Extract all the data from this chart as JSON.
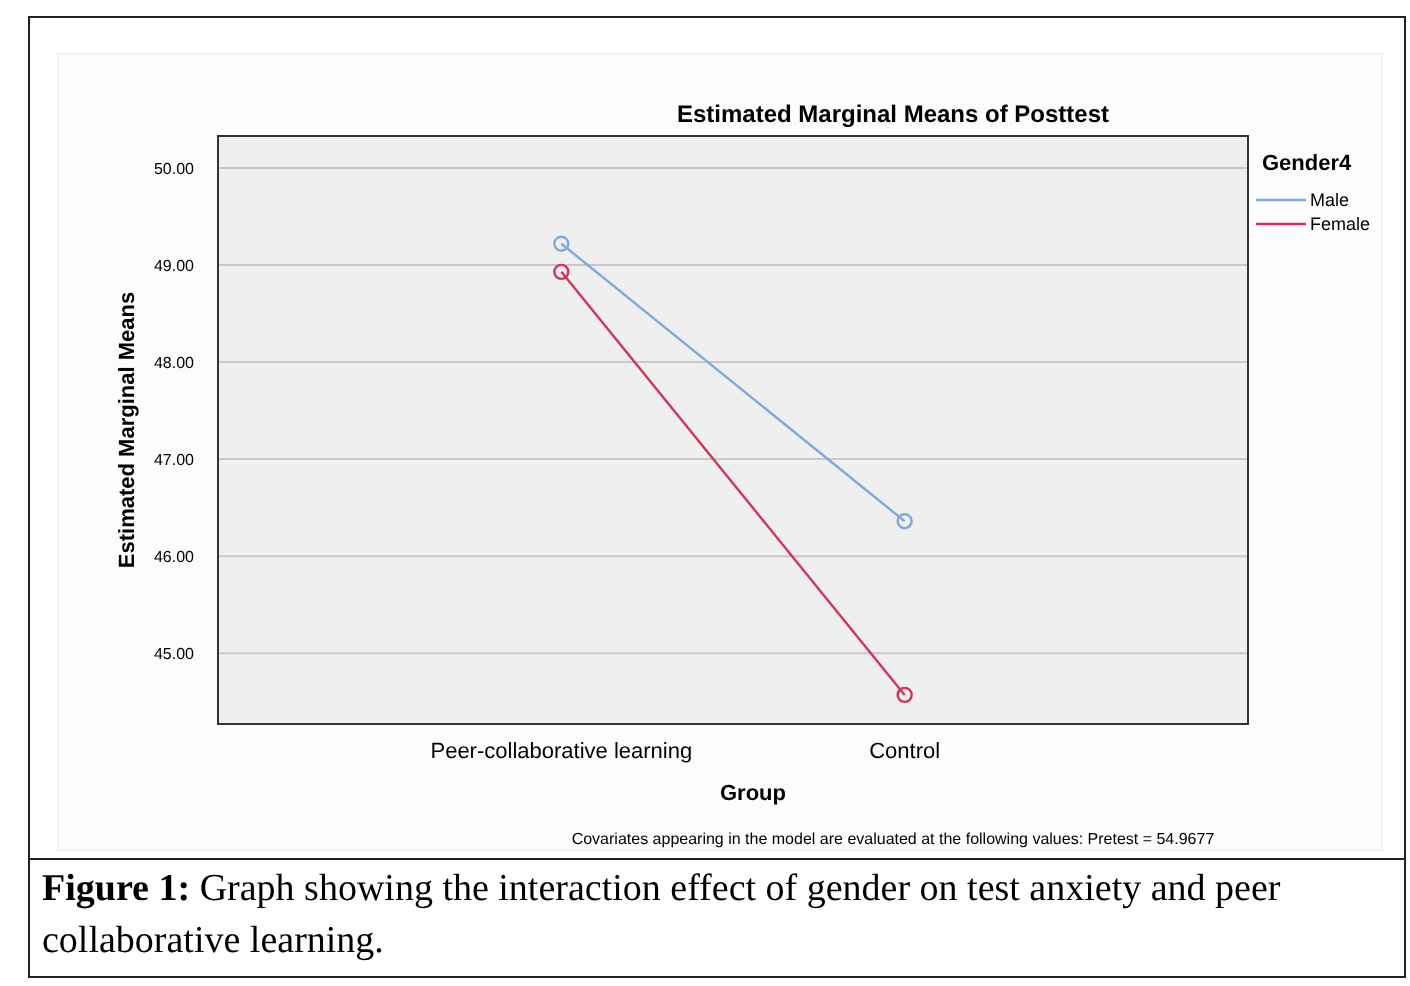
{
  "chart_data": {
    "type": "line",
    "title": "Estimated Marginal Means of Posttest",
    "xlabel": "Group",
    "ylabel": "Estimated Marginal Means",
    "legend_title": "Gender4",
    "categories": [
      "Peer-collaborative learning",
      "Control"
    ],
    "series": [
      {
        "name": "Male",
        "color": "#7fa8dd",
        "values": [
          49.22,
          46.36
        ]
      },
      {
        "name": "Female",
        "color": "#d1345b",
        "values": [
          48.93,
          44.57
        ]
      }
    ],
    "ylim": [
      44.27,
      50.33
    ],
    "yticks": [
      {
        "value": 45,
        "label": "45.00"
      },
      {
        "value": 46,
        "label": "46.00"
      },
      {
        "value": 47,
        "label": "47.00"
      },
      {
        "value": 48,
        "label": "48.00"
      },
      {
        "value": 49,
        "label": "49.00"
      },
      {
        "value": 50,
        "label": "50.00"
      }
    ],
    "grid": "y",
    "legend": "top right",
    "marker": "circle",
    "line_style": "solid",
    "annotations": [
      "Covariates appearing in the model are evaluated at the following values: Pretest = 54.9677",
      "Figure 1: Graph showing the interaction effect of gender on test anxiety and peer collaborative learning."
    ]
  }
}
